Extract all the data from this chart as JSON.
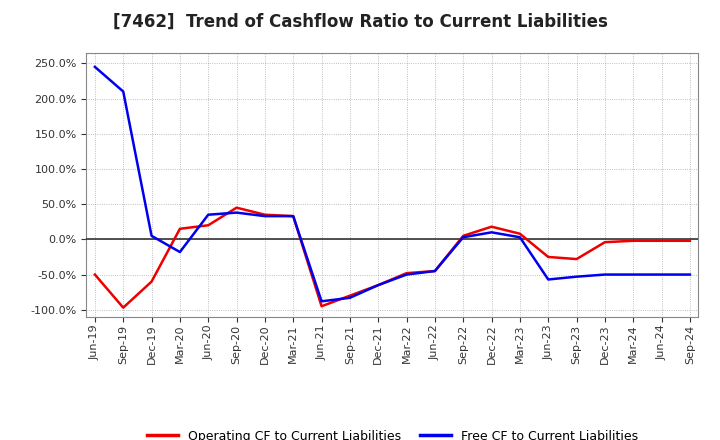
{
  "title": "[7462]  Trend of Cashflow Ratio to Current Liabilities",
  "x_labels": [
    "Jun-19",
    "Sep-19",
    "Dec-19",
    "Mar-20",
    "Jun-20",
    "Sep-20",
    "Dec-20",
    "Mar-21",
    "Jun-21",
    "Sep-21",
    "Dec-21",
    "Mar-22",
    "Jun-22",
    "Sep-22",
    "Dec-22",
    "Mar-23",
    "Jun-23",
    "Sep-23",
    "Dec-23",
    "Mar-24",
    "Jun-24",
    "Sep-24"
  ],
  "operating_cf": [
    -50.0,
    -97.0,
    -60.0,
    15.0,
    20.0,
    45.0,
    35.0,
    33.0,
    -95.0,
    -80.0,
    -65.0,
    -48.0,
    -45.0,
    5.0,
    18.0,
    8.0,
    -25.0,
    -28.0,
    -4.0,
    -2.0,
    -2.0,
    -2.0
  ],
  "free_cf": [
    245.0,
    210.0,
    5.0,
    -18.0,
    35.0,
    38.0,
    33.0,
    33.0,
    -88.0,
    -83.0,
    -65.0,
    -50.0,
    -45.0,
    3.0,
    10.0,
    3.0,
    -57.0,
    -53.0,
    -50.0,
    -50.0,
    -50.0,
    -50.0
  ],
  "ylim": [
    -110.0,
    265.0
  ],
  "yticks": [
    -100.0,
    -50.0,
    0.0,
    50.0,
    100.0,
    150.0,
    200.0,
    250.0
  ],
  "operating_color": "#EE0000",
  "free_color": "#0000EE",
  "bg_color": "#FFFFFF",
  "plot_bg_color": "#FFFFFF",
  "grid_color": "#888888",
  "zero_line_color": "#333333",
  "legend_op": "Operating CF to Current Liabilities",
  "legend_free": "Free CF to Current Liabilities",
  "title_fontsize": 12,
  "tick_fontsize": 8,
  "legend_fontsize": 9
}
